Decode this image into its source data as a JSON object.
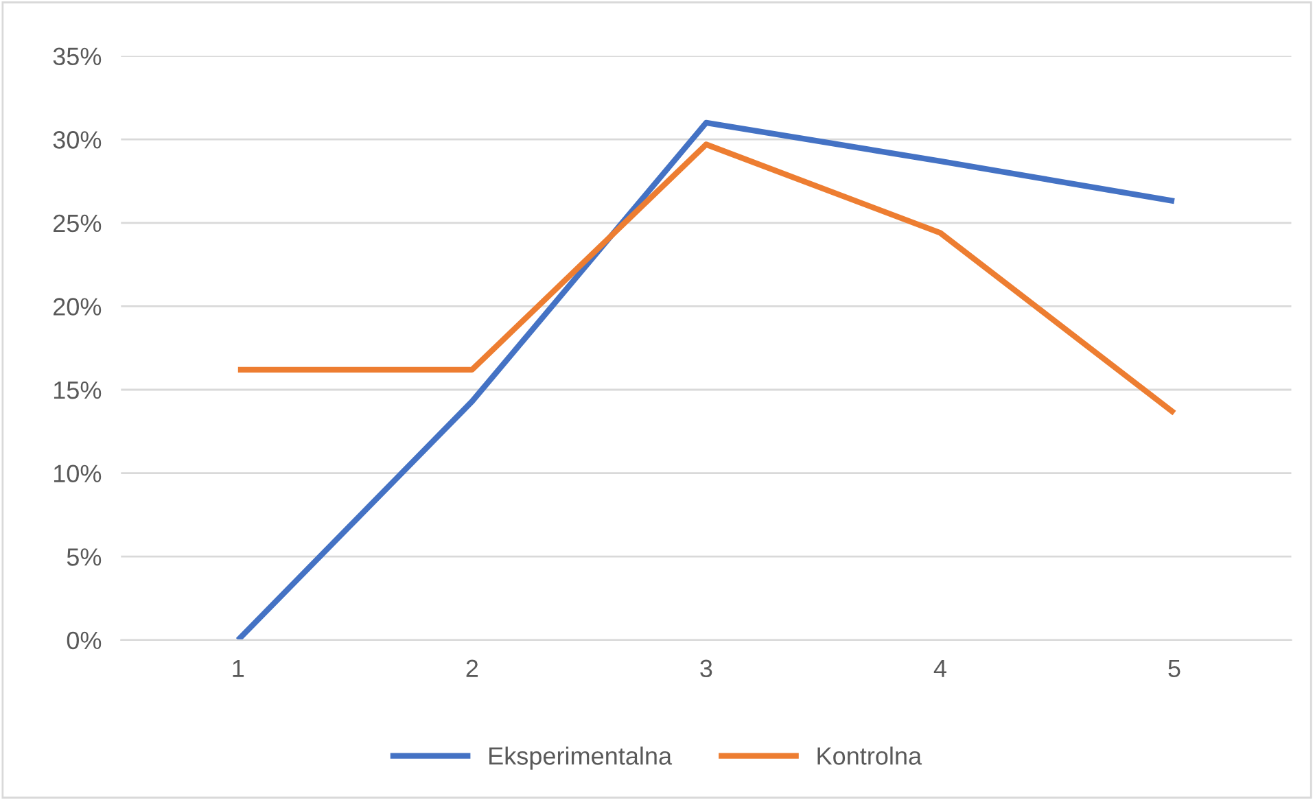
{
  "chart_data": {
    "type": "line",
    "categories": [
      "1",
      "2",
      "3",
      "4",
      "5"
    ],
    "series": [
      {
        "name": "Eksperimentalna",
        "color": "#4472c4",
        "values": [
          0,
          14.3,
          31.0,
          28.7,
          26.3
        ]
      },
      {
        "name": "Kontrolna",
        "color": "#ed7d31",
        "values": [
          16.2,
          16.2,
          29.7,
          24.4,
          13.6
        ]
      }
    ],
    "ylim": [
      0,
      35
    ],
    "yticks": [
      {
        "value": 0,
        "label": "0%"
      },
      {
        "value": 5,
        "label": "5%"
      },
      {
        "value": 10,
        "label": "10%"
      },
      {
        "value": 15,
        "label": "15%"
      },
      {
        "value": 20,
        "label": "20%"
      },
      {
        "value": 25,
        "label": "25%"
      },
      {
        "value": 30,
        "label": "30%"
      },
      {
        "value": 35,
        "label": "35%"
      }
    ],
    "grid": "y",
    "legend": "bottom",
    "marker": "none",
    "line_style": "solid"
  }
}
